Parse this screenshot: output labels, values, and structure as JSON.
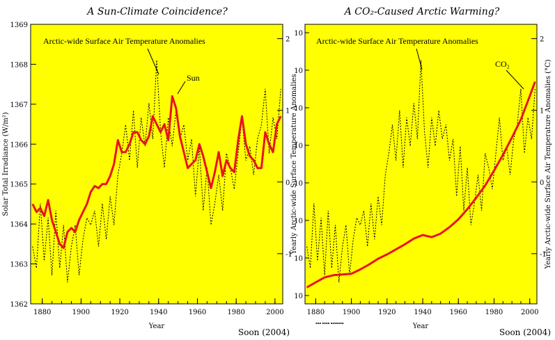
{
  "chart_data": [
    {
      "type": "line",
      "title": "A Sun-Climate Coincidence?",
      "xlabel": "Year",
      "ylabel": "Solar Total Irradiance (W/m²)",
      "ylabel_right": "",
      "xlim": [
        1874,
        2004
      ],
      "ylim": [
        1362,
        1369
      ],
      "ylim_right": [
        -1.7,
        2.2
      ],
      "x_ticks": [
        1880,
        1900,
        1920,
        1940,
        1960,
        1980,
        2000
      ],
      "x_tick_labels": [
        "1880",
        "1900",
        "1920",
        "1940",
        "1960",
        "1980",
        "2000"
      ],
      "y_ticks": [
        1362,
        1363,
        1364,
        1365,
        1366,
        1367,
        1368,
        1369
      ],
      "y_tick_labels": [
        "1362",
        "1363",
        "1364",
        "1365",
        "1366",
        "1367",
        "1368",
        "1369"
      ],
      "y_right_ticks": [
        -1,
        0,
        1,
        2
      ],
      "y_right_tick_labels": [
        "-1",
        "0",
        "1",
        "2"
      ],
      "grid": false,
      "background": "#ffff00",
      "annotations": [
        "Arctic-wide Surface Air Temperature Anomalies",
        "Sun"
      ],
      "footer": "Soon (2004)",
      "series": [
        {
          "name": "Sun",
          "axis": "left",
          "style": "solid",
          "color": "#e8141c",
          "x": [
            1875,
            1877,
            1879,
            1881,
            1883,
            1885,
            1887,
            1889,
            1891,
            1893,
            1895,
            1897,
            1899,
            1901,
            1903,
            1905,
            1907,
            1909,
            1911,
            1913,
            1915,
            1917,
            1919,
            1921,
            1923,
            1925,
            1927,
            1929,
            1931,
            1933,
            1935,
            1937,
            1939,
            1941,
            1943,
            1945,
            1947,
            1949,
            1951,
            1953,
            1955,
            1957,
            1959,
            1961,
            1963,
            1965,
            1967,
            1969,
            1971,
            1973,
            1975,
            1977,
            1979,
            1981,
            1983,
            1985,
            1987,
            1989,
            1991,
            1993,
            1995,
            1997,
            1999,
            2001,
            2003
          ],
          "values": [
            1364.5,
            1364.3,
            1364.4,
            1364.2,
            1364.6,
            1364.1,
            1363.8,
            1363.5,
            1363.4,
            1363.8,
            1363.9,
            1363.8,
            1364.1,
            1364.3,
            1364.5,
            1364.8,
            1364.95,
            1364.9,
            1365.0,
            1365.0,
            1365.2,
            1365.5,
            1366.1,
            1365.8,
            1365.8,
            1366.0,
            1366.3,
            1366.3,
            1366.1,
            1366.0,
            1366.2,
            1366.7,
            1366.5,
            1366.3,
            1366.5,
            1366.1,
            1367.2,
            1366.9,
            1366.2,
            1365.8,
            1365.4,
            1365.5,
            1365.6,
            1366.0,
            1365.7,
            1365.3,
            1364.9,
            1365.3,
            1365.8,
            1365.2,
            1365.6,
            1365.4,
            1365.3,
            1366.1,
            1366.7,
            1366.0,
            1365.7,
            1365.6,
            1365.4,
            1365.4,
            1366.3,
            1366.0,
            1365.8,
            1366.5,
            1366.7
          ]
        },
        {
          "name": "Arctic-wide Surface Air Temperature Anomalies",
          "axis": "right",
          "style": "dotted",
          "color": "#000000",
          "x": [
            1875,
            1877,
            1879,
            1881,
            1883,
            1885,
            1887,
            1889,
            1891,
            1893,
            1895,
            1897,
            1899,
            1901,
            1903,
            1905,
            1907,
            1909,
            1911,
            1913,
            1915,
            1917,
            1919,
            1921,
            1923,
            1925,
            1927,
            1929,
            1931,
            1933,
            1935,
            1937,
            1939,
            1941,
            1943,
            1945,
            1947,
            1949,
            1951,
            1953,
            1955,
            1957,
            1959,
            1961,
            1963,
            1965,
            1967,
            1969,
            1971,
            1973,
            1975,
            1977,
            1979,
            1981,
            1983,
            1985,
            1987,
            1989,
            1991,
            1993,
            1995,
            1997,
            1999,
            2001,
            2003
          ],
          "values": [
            -0.9,
            -1.2,
            -0.3,
            -1.1,
            -0.5,
            -1.3,
            -0.4,
            -1.2,
            -0.6,
            -1.4,
            -0.9,
            -0.6,
            -1.3,
            -0.8,
            -0.5,
            -0.6,
            -0.4,
            -0.9,
            -0.3,
            -0.8,
            -0.2,
            -0.6,
            0.1,
            0.4,
            0.8,
            0.3,
            1.0,
            0.2,
            0.9,
            0.5,
            1.1,
            0.6,
            1.7,
            0.7,
            0.2,
            0.9,
            0.5,
            1.0,
            0.6,
            0.8,
            0.3,
            0.6,
            -0.2,
            0.5,
            -0.4,
            0.2,
            -0.6,
            -0.3,
            0.1,
            -0.4,
            0.4,
            0.2,
            -0.1,
            0.4,
            0.9,
            0.3,
            0.5,
            0.1,
            0.6,
            0.8,
            1.3,
            0.4,
            0.9,
            0.6,
            1.3
          ]
        }
      ]
    },
    {
      "type": "line",
      "title": "A CO₂-Caused Arctic Warming?",
      "xlabel": "Year",
      "ylabel": "Yearly Arctic-wide Surface Temperature Anomalies",
      "ylabel_right": "Yearly Arctic-wide Surface Air Temperature Anomalies (°C)",
      "xlim": [
        1874,
        2004
      ],
      "ylim_right": [
        -1.7,
        2.2
      ],
      "x_ticks": [
        1880,
        1900,
        1920,
        1940,
        1960,
        1980,
        2000
      ],
      "x_tick_labels": [
        "1880",
        "1900",
        "1920",
        "1940",
        "1960",
        "1980",
        "2000"
      ],
      "y_left_tick_labels": [
        "10",
        "10",
        "10",
        "10",
        "10",
        "10",
        "10",
        "10"
      ],
      "y_right_ticks": [
        -1,
        0,
        1,
        2
      ],
      "y_right_tick_labels": [
        "-1",
        "0",
        "1",
        "2"
      ],
      "grid": false,
      "background": "#ffff00",
      "annotations": [
        "Arctic-wide Surface Air Temperature Anomalies",
        "CO₂"
      ],
      "footer": "Soon (2004)",
      "series": [
        {
          "name": "CO₂",
          "axis": "right",
          "style": "solid",
          "color": "#e8141c",
          "x": [
            1875,
            1880,
            1885,
            1890,
            1895,
            1900,
            1905,
            1910,
            1915,
            1920,
            1925,
            1930,
            1935,
            1940,
            1945,
            1950,
            1955,
            1960,
            1965,
            1970,
            1975,
            1980,
            1985,
            1990,
            1995,
            2000,
            2003
          ],
          "values": [
            -1.47,
            -1.4,
            -1.33,
            -1.3,
            -1.29,
            -1.28,
            -1.22,
            -1.15,
            -1.07,
            -1.01,
            -0.94,
            -0.87,
            -0.79,
            -0.74,
            -0.77,
            -0.72,
            -0.63,
            -0.52,
            -0.38,
            -0.22,
            -0.05,
            0.16,
            0.38,
            0.62,
            0.87,
            1.2,
            1.4
          ]
        },
        {
          "name": "Arctic-wide Surface Air Temperature Anomalies",
          "axis": "right",
          "style": "dotted",
          "color": "#000000",
          "x": [
            1875,
            1877,
            1879,
            1881,
            1883,
            1885,
            1887,
            1889,
            1891,
            1893,
            1895,
            1897,
            1899,
            1901,
            1903,
            1905,
            1907,
            1909,
            1911,
            1913,
            1915,
            1917,
            1919,
            1921,
            1923,
            1925,
            1927,
            1929,
            1931,
            1933,
            1935,
            1937,
            1939,
            1941,
            1943,
            1945,
            1947,
            1949,
            1951,
            1953,
            1955,
            1957,
            1959,
            1961,
            1963,
            1965,
            1967,
            1969,
            1971,
            1973,
            1975,
            1977,
            1979,
            1981,
            1983,
            1985,
            1987,
            1989,
            1991,
            1993,
            1995,
            1997,
            1999,
            2001,
            2003
          ],
          "values": [
            -0.9,
            -1.2,
            -0.3,
            -1.1,
            -0.5,
            -1.3,
            -0.4,
            -1.2,
            -0.6,
            -1.4,
            -0.9,
            -0.6,
            -1.3,
            -0.8,
            -0.5,
            -0.6,
            -0.4,
            -0.9,
            -0.3,
            -0.8,
            -0.2,
            -0.6,
            0.1,
            0.4,
            0.8,
            0.3,
            1.0,
            0.2,
            0.9,
            0.5,
            1.1,
            0.6,
            1.7,
            0.7,
            0.2,
            0.9,
            0.5,
            1.0,
            0.6,
            0.8,
            0.3,
            0.6,
            -0.2,
            0.5,
            -0.4,
            0.2,
            -0.6,
            -0.3,
            0.1,
            -0.4,
            0.4,
            0.2,
            -0.1,
            0.4,
            0.9,
            0.3,
            0.5,
            0.1,
            0.6,
            0.8,
            1.3,
            0.4,
            0.9,
            0.6,
            1.3
          ]
        }
      ]
    }
  ]
}
